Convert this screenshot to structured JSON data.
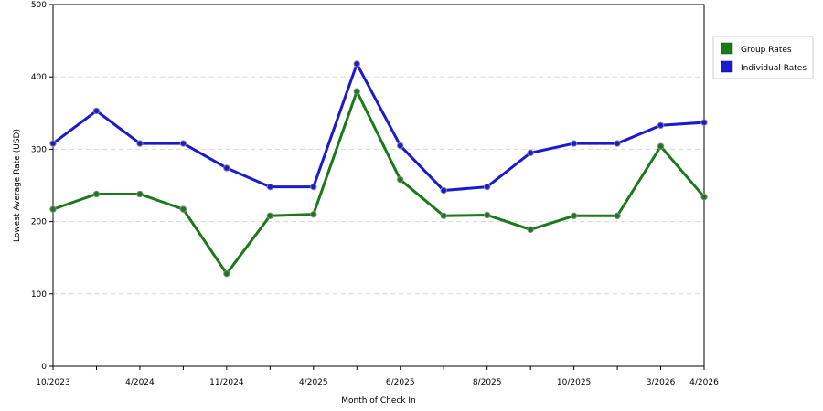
{
  "chart_data": {
    "type": "line",
    "xlabel": "Month of Check In",
    "ylabel": "Lowest Average Rate (USD)",
    "ylim": [
      0,
      500
    ],
    "yticks": [
      0,
      100,
      200,
      300,
      400,
      500
    ],
    "grid": true,
    "legend_position": "right",
    "x_tick_labels": [
      "10/2023",
      "",
      "4/2024",
      "",
      "11/2024",
      "",
      "4/2025",
      "",
      "6/2025",
      "",
      "8/2025",
      "",
      "10/2025",
      "",
      "3/2026",
      "4/2026"
    ],
    "series": [
      {
        "name": "Group Rates",
        "color": "#1a7a1a",
        "values": [
          217,
          238,
          238,
          217,
          128,
          208,
          210,
          380,
          258,
          208,
          209,
          189,
          208,
          208,
          304,
          234
        ]
      },
      {
        "name": "Individual Rates",
        "color": "#1a1ad0",
        "values": [
          308,
          353,
          308,
          308,
          274,
          248,
          248,
          418,
          305,
          243,
          248,
          295,
          308,
          308,
          333,
          337
        ]
      }
    ]
  }
}
